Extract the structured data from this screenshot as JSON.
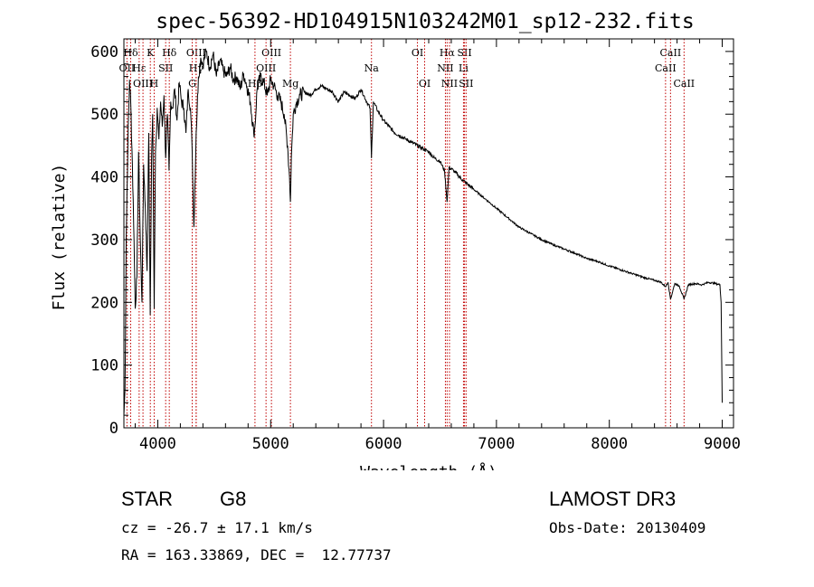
{
  "chart_data": {
    "type": "line",
    "title": "spec-56392-HD104915N103242M01_sp12-232.fits",
    "xlabel": "Wavelength (Å)",
    "ylabel": "Flux (relative)",
    "xlim": [
      3700,
      9100
    ],
    "ylim": [
      0,
      620
    ],
    "xticks": [
      4000,
      5000,
      6000,
      7000,
      8000,
      9000
    ],
    "yticks": [
      0,
      100,
      200,
      300,
      400,
      500,
      600
    ],
    "series": [
      {
        "name": "flux",
        "x": [
          3700,
          3710,
          3720,
          3735,
          3750,
          3760,
          3775,
          3790,
          3800,
          3815,
          3830,
          3845,
          3860,
          3875,
          3890,
          3905,
          3920,
          3933,
          3945,
          3955,
          3968,
          3980,
          3995,
          4010,
          4025,
          4040,
          4055,
          4070,
          4085,
          4100,
          4115,
          4130,
          4150,
          4170,
          4190,
          4210,
          4230,
          4250,
          4270,
          4290,
          4305,
          4320,
          4340,
          4360,
          4380,
          4400,
          4430,
          4460,
          4490,
          4520,
          4550,
          4580,
          4610,
          4640,
          4670,
          4700,
          4730,
          4760,
          4790,
          4820,
          4850,
          4861,
          4880,
          4910,
          4940,
          4970,
          5000,
          5030,
          5060,
          5090,
          5120,
          5150,
          5167,
          5175,
          5183,
          5200,
          5230,
          5260,
          5300,
          5350,
          5400,
          5450,
          5500,
          5550,
          5600,
          5650,
          5700,
          5750,
          5800,
          5850,
          5880,
          5893,
          5910,
          5950,
          6000,
          6050,
          6100,
          6150,
          6200,
          6250,
          6300,
          6350,
          6400,
          6450,
          6500,
          6540,
          6563,
          6580,
          6620,
          6700,
          6800,
          6900,
          7000,
          7100,
          7200,
          7300,
          7400,
          7500,
          7600,
          7700,
          7800,
          7900,
          8000,
          8100,
          8200,
          8300,
          8400,
          8450,
          8498,
          8520,
          8542,
          8580,
          8620,
          8662,
          8700,
          8760,
          8820,
          8880,
          8940,
          8980,
          8990,
          9000
        ],
        "y": [
          20,
          60,
          300,
          450,
          555,
          520,
          420,
          300,
          190,
          240,
          440,
          300,
          200,
          420,
          350,
          250,
          470,
          180,
          430,
          500,
          190,
          440,
          510,
          460,
          520,
          480,
          530,
          430,
          500,
          410,
          520,
          510,
          540,
          490,
          550,
          520,
          510,
          470,
          540,
          510,
          440,
          320,
          470,
          560,
          590,
          580,
          600,
          575,
          595,
          560,
          585,
          570,
          560,
          575,
          555,
          560,
          540,
          565,
          545,
          520,
          470,
          480,
          540,
          560,
          550,
          530,
          555,
          545,
          530,
          520,
          500,
          450,
          400,
          360,
          430,
          500,
          520,
          530,
          535,
          530,
          540,
          545,
          540,
          535,
          520,
          535,
          530,
          525,
          540,
          520,
          510,
          430,
          520,
          505,
          490,
          480,
          470,
          465,
          460,
          455,
          450,
          445,
          440,
          430,
          425,
          410,
          360,
          415,
          410,
          395,
          380,
          365,
          350,
          335,
          320,
          310,
          300,
          292,
          285,
          278,
          270,
          265,
          258,
          252,
          246,
          240,
          235,
          233,
          225,
          232,
          205,
          230,
          226,
          205,
          228,
          230,
          228,
          232,
          230,
          228,
          200,
          40
        ]
      }
    ],
    "line_marks": [
      {
        "label": "Hδ",
        "x": 3760,
        "row": 1
      },
      {
        "label": "K",
        "x": 3934,
        "row": 1
      },
      {
        "label": "Hδ",
        "x": 4102,
        "row": 1
      },
      {
        "label": "OII",
        "x": 3727,
        "row": 2
      },
      {
        "label": "Hε",
        "x": 3835,
        "row": 2
      },
      {
        "label": "SII",
        "x": 4070,
        "row": 2
      },
      {
        "label": "OIII",
        "x": 3869,
        "row": 3
      },
      {
        "label": "H",
        "x": 3968,
        "row": 3
      },
      {
        "label": "OIII",
        "x": 4340,
        "row": 1
      },
      {
        "label": "Hγ",
        "x": 4340,
        "row": 2
      },
      {
        "label": "G",
        "x": 4305,
        "row": 3
      },
      {
        "label": "OIII",
        "x": 5007,
        "row": 1
      },
      {
        "label": "OIII",
        "x": 4959,
        "row": 2
      },
      {
        "label": "Hβ",
        "x": 4861,
        "row": 3
      },
      {
        "label": "Mg",
        "x": 5175,
        "row": 3
      },
      {
        "label": "Na",
        "x": 5893,
        "row": 2
      },
      {
        "label": "OI",
        "x": 6300,
        "row": 1
      },
      {
        "label": "OI",
        "x": 6364,
        "row": 3
      },
      {
        "label": "Hα",
        "x": 6563,
        "row": 1
      },
      {
        "label": "SII",
        "x": 6717,
        "row": 1
      },
      {
        "label": "NII",
        "x": 6548,
        "row": 2
      },
      {
        "label": "Li",
        "x": 6708,
        "row": 2
      },
      {
        "label": "NII",
        "x": 6584,
        "row": 3
      },
      {
        "label": "SII",
        "x": 6731,
        "row": 3
      },
      {
        "label": "CaII",
        "x": 8542,
        "row": 1
      },
      {
        "label": "CaII",
        "x": 8498,
        "row": 2
      },
      {
        "label": "CaII",
        "x": 8662,
        "row": 3
      }
    ],
    "line_color": "#c00000"
  },
  "info": {
    "object_class": "STAR",
    "subclass": "G8",
    "survey": "LAMOST DR3",
    "cz": "cz = -26.7 ± 17.1 km/s",
    "obs_date": "Obs-Date: 20130409",
    "coords": "RA = 163.33869, DEC =  12.77737"
  }
}
